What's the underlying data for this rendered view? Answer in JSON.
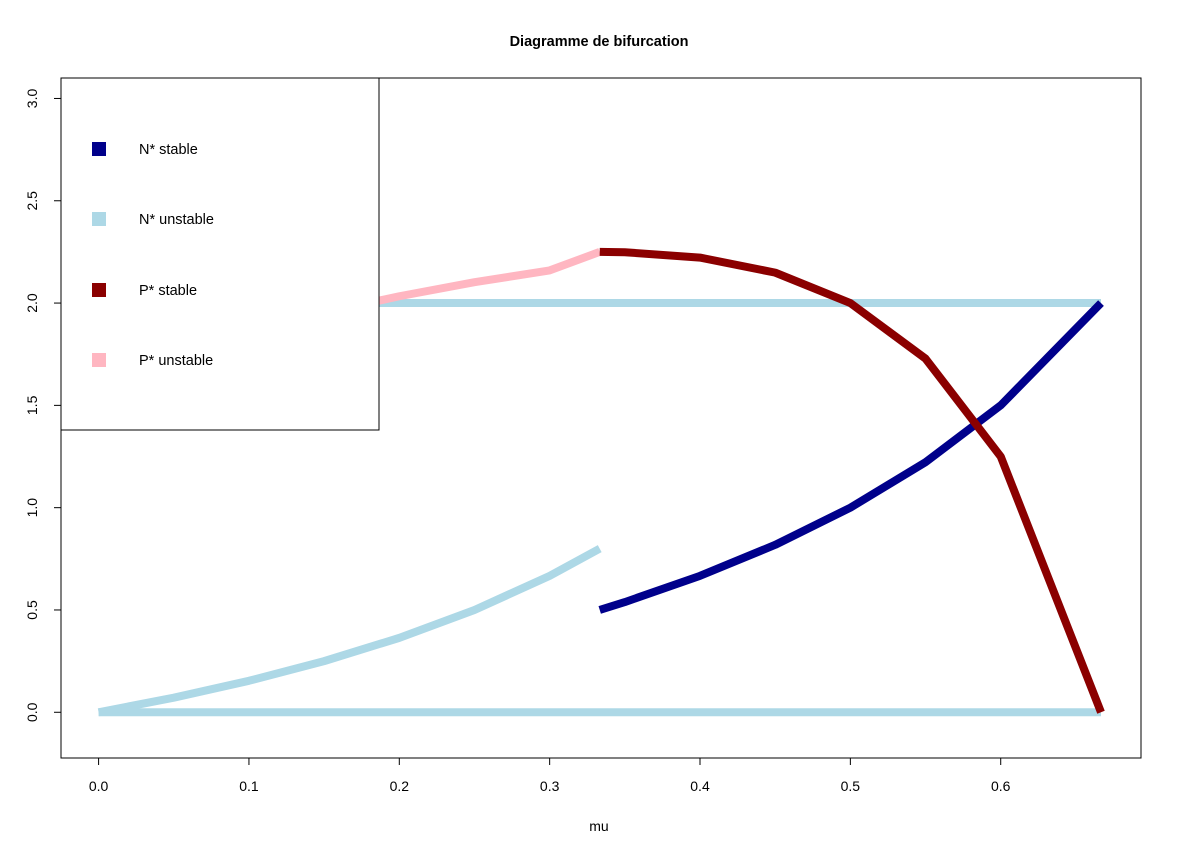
{
  "chart_data": {
    "type": "line",
    "title": "Diagramme de bifurcation",
    "xlabel": "mu",
    "ylabel": "",
    "xlim": [
      -0.025,
      0.6933
    ],
    "ylim": [
      -0.2235,
      3.1
    ],
    "xticks": [
      "0.0",
      "0.1",
      "0.2",
      "0.3",
      "0.4",
      "0.5",
      "0.6"
    ],
    "yticks": [
      "0.0",
      "0.5",
      "1.0",
      "1.5",
      "2.0",
      "2.5",
      "3.0"
    ],
    "grid": false,
    "legend": {
      "position": "top-left",
      "entries": [
        {
          "label": "N* stable",
          "color": "#00008B"
        },
        {
          "label": "N* unstable",
          "color": "#ADD8E6"
        },
        {
          "label": "P* stable",
          "color": "#8B0000"
        },
        {
          "label": "P* unstable",
          "color": "#FFB6C1"
        }
      ]
    },
    "series": [
      {
        "legend": "N* unstable",
        "color": "#ADD8E6",
        "x": [
          0,
          0.6667
        ],
        "y": [
          0,
          0
        ]
      },
      {
        "legend": "N* unstable",
        "color": "#ADD8E6",
        "x": [
          0,
          0.6667
        ],
        "y": [
          2,
          2
        ]
      },
      {
        "legend": "N* unstable",
        "color": "#ADD8E6",
        "x": [
          0,
          0.05,
          0.1,
          0.15,
          0.2,
          0.25,
          0.3,
          0.3333
        ],
        "y": [
          0,
          0.0714,
          0.1538,
          0.25,
          0.3636,
          0.5,
          0.6667,
          0.8
        ]
      },
      {
        "legend": "N* stable",
        "color": "#00008B",
        "x": [
          0.3333,
          0.35,
          0.4,
          0.45,
          0.5,
          0.55,
          0.6,
          0.6667
        ],
        "y": [
          0.5,
          0.5385,
          0.6667,
          0.8182,
          1.0,
          1.2222,
          1.5,
          2.0
        ]
      },
      {
        "legend": "P* unstable",
        "color": "#FFB6C1",
        "x": [
          0,
          0.05,
          0.1,
          0.15,
          0.2,
          0.25,
          0.3,
          0.3333
        ],
        "y": [
          1.6364,
          1.7551,
          1.8605,
          1.953,
          2.0333,
          2.102,
          2.1597,
          2.25
        ]
      },
      {
        "legend": "P* stable",
        "color": "#8B0000",
        "x": [
          0.3333,
          0.35,
          0.4,
          0.45,
          0.5,
          0.55,
          0.6,
          0.6667
        ],
        "y": [
          2.25,
          2.2485,
          2.2222,
          2.1488,
          2.0,
          1.7284,
          1.25,
          0.0
        ]
      }
    ]
  }
}
